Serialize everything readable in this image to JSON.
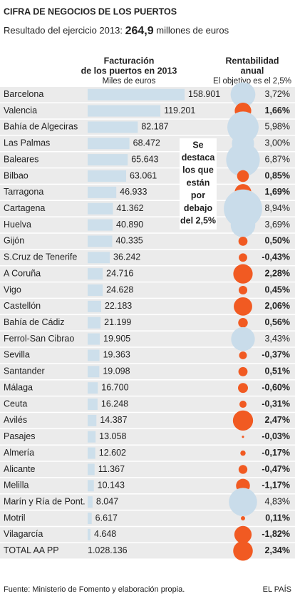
{
  "chart_data": {
    "type": "bar-bubble-table",
    "title": "CIFRA DE NEGOCIOS DE LOS PUERTOS",
    "subtitle_prefix": "Resultado del ejercicio 2013:",
    "subtitle_total": {
      "value": 264.9,
      "label": "264,9"
    },
    "subtitle_suffix": "millones de euros",
    "categories": [
      "Barcelona",
      "Valencia",
      "Bahía de Algeciras",
      "Las Palmas",
      "Baleares",
      "Bilbao",
      "Tarragona",
      "Cartagena",
      "Huelva",
      "Gijón",
      "S.Cruz de Tenerife",
      "A Coruña",
      "Vigo",
      "Castellón",
      "Bahía de Cádiz",
      "Ferrol-San Cibrao",
      "Sevilla",
      "Santander",
      "Málaga",
      "Ceuta",
      "Avilés",
      "Pasajes",
      "Almería",
      "Alicante",
      "Melilla",
      "Marín y Ría de Pont.",
      "Motril",
      "Vilagarcía"
    ],
    "revenue": {
      "header": [
        "Facturación",
        "de los puertos en 2013"
      ],
      "unit": "Miles de euros",
      "color": "#cddfeb",
      "xlim": [
        0,
        160000
      ],
      "values": [
        158901,
        119201,
        82187,
        68472,
        65643,
        63061,
        46933,
        41362,
        40890,
        40335,
        36242,
        24716,
        24628,
        22183,
        21199,
        19905,
        19363,
        19098,
        16700,
        16248,
        14387,
        13058,
        12602,
        11367,
        10143,
        8047,
        6617,
        4648
      ],
      "value_labels": [
        "158.901",
        "119.201",
        "82.187",
        "68.472",
        "65.643",
        "63.061",
        "46.933",
        "41.362",
        "40.890",
        "40.335",
        "36.242",
        "24.716",
        "24.628",
        "22.183",
        "21.199",
        "19.905",
        "19.363",
        "19.098",
        "16.700",
        "16.248",
        "14.387",
        "13.058",
        "12.602",
        "11.367",
        "10.143",
        "8.047",
        "6.617",
        "4.648"
      ]
    },
    "rentabilidad": {
      "header": [
        "Rentabilidad",
        "anual"
      ],
      "target_prefix": "El objetivo es  el",
      "target": {
        "value": 2.5,
        "label": "2,5%"
      },
      "color_below": "#f15a22",
      "color_above": "#c9dcea",
      "values": [
        3.72,
        1.66,
        5.98,
        3.0,
        6.87,
        0.85,
        1.69,
        8.94,
        3.69,
        0.5,
        -0.43,
        2.28,
        0.45,
        2.06,
        0.56,
        3.43,
        -0.37,
        0.51,
        -0.6,
        -0.31,
        2.47,
        -0.03,
        -0.17,
        -0.47,
        -1.17,
        4.83,
        0.11,
        -1.82
      ],
      "value_labels": [
        "3,72%",
        "1,66%",
        "5,98%",
        "3,00%",
        "6,87%",
        "0,85%",
        "1,69%",
        "8,94%",
        "3,69%",
        "0,50%",
        "-0,43%",
        "2,28%",
        "0,45%",
        "2,06%",
        "0,56%",
        "3,43%",
        "-0,37%",
        "0,51%",
        "-0,60%",
        "-0,31%",
        "2,47%",
        "-0,03%",
        "-0,17%",
        "-0,47%",
        "-1,17%",
        "4,83%",
        "0,11%",
        "-1,82%"
      ]
    },
    "total": {
      "label": "TOTAL AA PP",
      "revenue": 1028136,
      "revenue_label": "1.028.136",
      "rentabilidad": 2.34,
      "rentabilidad_label": "2,34%"
    },
    "annotation": [
      "Se",
      "destaca",
      "los que",
      "están",
      "por",
      "debajo",
      "del 2,5%"
    ],
    "source": "Fuente: Ministerio de Fomento y elaboración propia.",
    "brand": "EL PAÍS"
  }
}
